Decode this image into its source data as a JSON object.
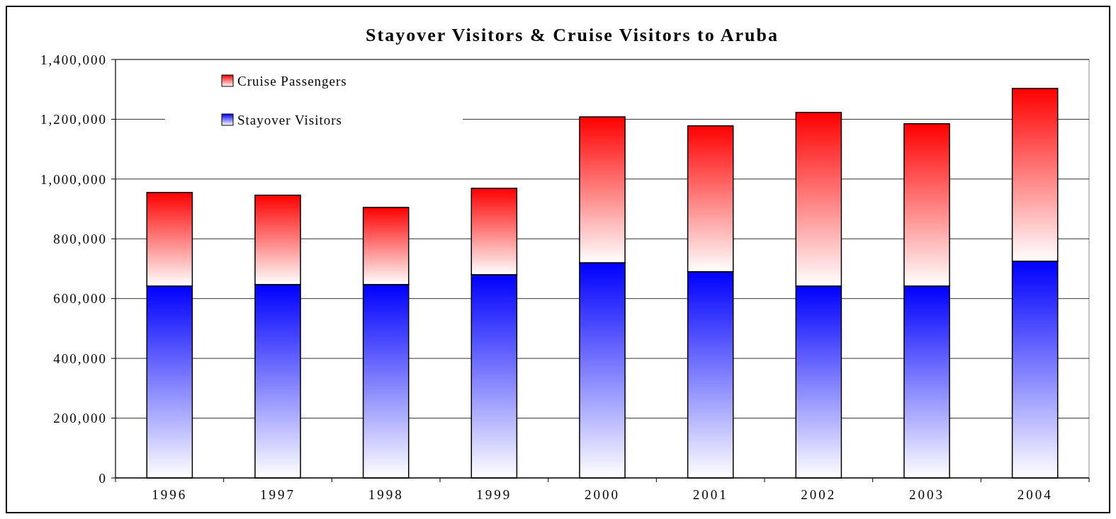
{
  "chart_data": {
    "type": "bar",
    "title": "Stayover Visitors & Cruise Visitors to Aruba",
    "stacked": true,
    "categories": [
      "1996",
      "1997",
      "1998",
      "1999",
      "2000",
      "2001",
      "2002",
      "2003",
      "2004"
    ],
    "series": [
      {
        "name": "Stayover Visitors",
        "color": "#0000ff",
        "values": [
          642000,
          647000,
          647000,
          680000,
          720000,
          690000,
          642000,
          642000,
          725000
        ]
      },
      {
        "name": "Cruise Passengers",
        "color": "#ff0000",
        "values": [
          313000,
          299000,
          258000,
          289000,
          488000,
          488000,
          581000,
          543000,
          578000
        ]
      }
    ],
    "ylim": [
      0,
      1400000
    ],
    "yticks": [
      {
        "value": 0,
        "label": "0"
      },
      {
        "value": 200000,
        "label": "200,000"
      },
      {
        "value": 400000,
        "label": "400,000"
      },
      {
        "value": 600000,
        "label": "600,000"
      },
      {
        "value": 800000,
        "label": "800,000"
      },
      {
        "value": 1000000,
        "label": "1,000,000"
      },
      {
        "value": 1200000,
        "label": "1,200,000"
      },
      {
        "value": 1400000,
        "label": "1,400,000"
      }
    ],
    "grid": "y",
    "legend": "top left"
  }
}
